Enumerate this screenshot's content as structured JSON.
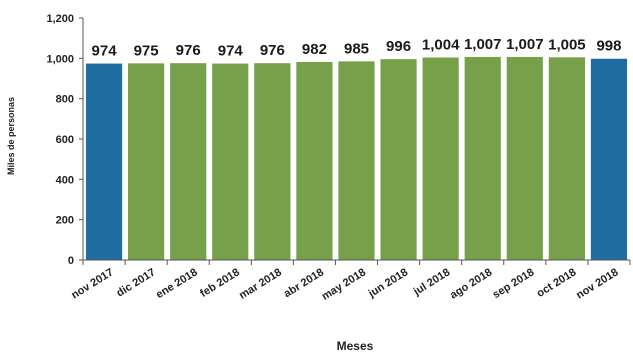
{
  "chart_data": {
    "type": "bar",
    "categories": [
      "nov 2017",
      "dic 2017",
      "ene 2018",
      "feb 2018",
      "mar 2018",
      "abr 2018",
      "may 2018",
      "jun 2018",
      "jul 2018",
      "ago 2018",
      "sep 2018",
      "oct 2018",
      "nov 2018"
    ],
    "values": [
      974,
      975,
      976,
      974,
      976,
      982,
      985,
      996,
      1004,
      1007,
      1007,
      1005,
      998
    ],
    "value_labels": [
      "974",
      "975",
      "976",
      "974",
      "976",
      "982",
      "985",
      "996",
      "1,004",
      "1,007",
      "1,007",
      "1,005",
      "998"
    ],
    "highlighted_categories": [
      "nov 2017",
      "nov 2018"
    ],
    "xlabel": "Meses",
    "ylabel": "Miles de personas",
    "ylim": [
      0,
      1200
    ],
    "yticks": [
      0,
      200,
      400,
      600,
      800,
      1000,
      1200
    ],
    "ytick_labels": [
      "0",
      "200",
      "400",
      "600",
      "800",
      "1,000",
      "1,200"
    ],
    "grid": false,
    "colors": {
      "bar": "#77a04a",
      "highlight": "#1f6ea3",
      "axis": "#555555"
    }
  }
}
